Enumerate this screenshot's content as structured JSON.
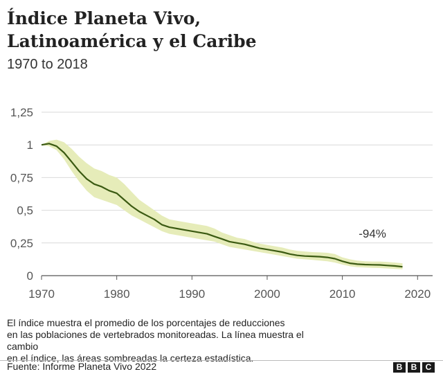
{
  "header": {
    "title_line1": "Índice Planeta Vivo,",
    "title_line2": "Latinoamérica y el Caribe",
    "subtitle": "1970 to 2018"
  },
  "chart_data": {
    "type": "line",
    "title": "Índice Planeta Vivo, Latinoamérica y el Caribe",
    "subtitle": "1970 to 2018",
    "xlabel": "",
    "ylabel": "",
    "xlim": [
      1970,
      2022
    ],
    "ylim": [
      0,
      1.25
    ],
    "x_ticks": [
      1970,
      1980,
      1990,
      2000,
      2010,
      2020
    ],
    "x_tick_labels": [
      "1970",
      "1980",
      "1990",
      "2000",
      "2010",
      "2020"
    ],
    "y_ticks": [
      0,
      0.25,
      0.5,
      0.75,
      1,
      1.25
    ],
    "y_tick_labels": [
      "0",
      "0,25",
      "0,5",
      "0,75",
      "1",
      "1,25"
    ],
    "grid": "horizontal",
    "colors": {
      "line": "#3b5a12",
      "band": "#e6ecb9",
      "grid": "#d9d9d9",
      "axis": "#555555"
    },
    "series": [
      {
        "x": [
          1970,
          1971,
          1972,
          1973,
          1974,
          1975,
          1976,
          1977,
          1978,
          1979,
          1980,
          1981,
          1982,
          1983,
          1984,
          1985,
          1986,
          1987,
          1988,
          1989,
          1990,
          1991,
          1992,
          1993,
          1994,
          1995,
          1996,
          1997,
          1998,
          1999,
          2000,
          2001,
          2002,
          2003,
          2004,
          2005,
          2006,
          2007,
          2008,
          2009,
          2010,
          2011,
          2012,
          2013,
          2014,
          2015,
          2016,
          2017,
          2018
        ],
        "values": [
          1.0,
          1.01,
          0.99,
          0.94,
          0.87,
          0.8,
          0.74,
          0.7,
          0.68,
          0.65,
          0.63,
          0.58,
          0.53,
          0.49,
          0.46,
          0.43,
          0.39,
          0.37,
          0.36,
          0.35,
          0.34,
          0.33,
          0.32,
          0.3,
          0.28,
          0.26,
          0.25,
          0.24,
          0.225,
          0.21,
          0.2,
          0.19,
          0.18,
          0.165,
          0.155,
          0.15,
          0.148,
          0.145,
          0.14,
          0.13,
          0.11,
          0.095,
          0.088,
          0.085,
          0.083,
          0.082,
          0.078,
          0.074,
          0.068
        ],
        "lower": [
          1.0,
          0.99,
          0.96,
          0.89,
          0.8,
          0.72,
          0.65,
          0.6,
          0.58,
          0.56,
          0.54,
          0.5,
          0.46,
          0.43,
          0.4,
          0.37,
          0.34,
          0.32,
          0.31,
          0.3,
          0.29,
          0.28,
          0.27,
          0.26,
          0.24,
          0.22,
          0.21,
          0.2,
          0.19,
          0.18,
          0.17,
          0.16,
          0.15,
          0.14,
          0.13,
          0.125,
          0.12,
          0.115,
          0.11,
          0.1,
          0.085,
          0.072,
          0.065,
          0.062,
          0.06,
          0.058,
          0.055,
          0.052,
          0.048
        ],
        "upper": [
          1.0,
          1.03,
          1.04,
          1.02,
          0.97,
          0.91,
          0.86,
          0.82,
          0.8,
          0.77,
          0.75,
          0.7,
          0.64,
          0.58,
          0.54,
          0.5,
          0.46,
          0.43,
          0.42,
          0.41,
          0.4,
          0.39,
          0.38,
          0.36,
          0.33,
          0.31,
          0.29,
          0.28,
          0.26,
          0.245,
          0.235,
          0.225,
          0.215,
          0.2,
          0.19,
          0.185,
          0.18,
          0.178,
          0.175,
          0.165,
          0.14,
          0.125,
          0.115,
          0.11,
          0.108,
          0.108,
          0.105,
          0.1,
          0.095
        ]
      }
    ],
    "annotations": [
      {
        "text": "-94%",
        "x": 2014,
        "y": 0.29
      }
    ]
  },
  "footer": {
    "note_line1": "El índice muestra el promedio de los porcentajes de reducciones",
    "note_line2": "en las poblaciones de vertebrados monitoreadas. La línea muestra el cambio",
    "note_line3": "en el índice, las áreas sombreadas la certeza estadística.",
    "source": "Fuente: Informe Planeta Vivo 2022",
    "logo": [
      "B",
      "B",
      "C"
    ]
  }
}
